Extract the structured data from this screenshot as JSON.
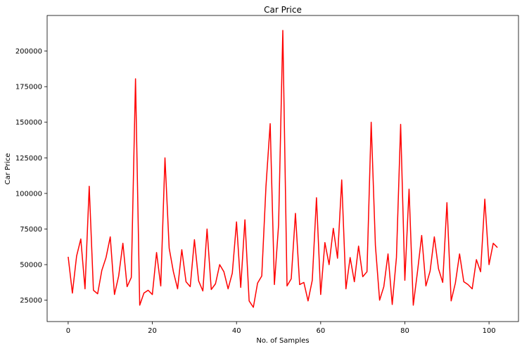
{
  "chart_data": {
    "type": "line",
    "title": "Car Price",
    "xlabel": "No. of Samples",
    "ylabel": "Car Price",
    "xlim": [
      -5,
      107
    ],
    "ylim": [
      10000,
      225000
    ],
    "x_ticks": [
      0,
      20,
      40,
      60,
      80,
      100
    ],
    "y_ticks": [
      25000,
      50000,
      75000,
      100000,
      125000,
      150000,
      175000,
      200000
    ],
    "grid": false,
    "line_color": "#ff0000",
    "series": [
      {
        "x": [
          0,
          1,
          2,
          3,
          4,
          5,
          6,
          7,
          8,
          9,
          10,
          11,
          12,
          13,
          14,
          15,
          16,
          17,
          18,
          19,
          20,
          21,
          22,
          23,
          24,
          25,
          26,
          27,
          28,
          29,
          30,
          31,
          32,
          33,
          34,
          35,
          36,
          37,
          38,
          39,
          40,
          41,
          42,
          43,
          44,
          45,
          46,
          47,
          48,
          49,
          50,
          51,
          52,
          53,
          54,
          55,
          56,
          57,
          58,
          59,
          60,
          61,
          62,
          63,
          64,
          65,
          66,
          67,
          68,
          69,
          70,
          71,
          72,
          73,
          74,
          75,
          76,
          77,
          78,
          79,
          80,
          81,
          82,
          83,
          84,
          85,
          86,
          87,
          88,
          89,
          90,
          91,
          92,
          93,
          94,
          95,
          96,
          97,
          98,
          99,
          100,
          101,
          102
        ],
        "values": [
          55500,
          30000,
          56000,
          68000,
          33000,
          105000,
          32000,
          29500,
          46000,
          55000,
          69500,
          29000,
          42000,
          65000,
          34500,
          41000,
          180500,
          21500,
          30000,
          32000,
          29000,
          58500,
          35000,
          125000,
          61500,
          45000,
          33000,
          60500,
          38000,
          34500,
          67500,
          38500,
          31500,
          75000,
          32500,
          36500,
          50000,
          45000,
          33000,
          44000,
          80000,
          34000,
          81500,
          24500,
          20000,
          37000,
          42000,
          105000,
          149000,
          36000,
          78000,
          214500,
          35000,
          40000,
          86000,
          36000,
          37500,
          24500,
          39000,
          97000,
          29000,
          65500,
          50000,
          75500,
          54500,
          109500,
          33000,
          55000,
          38000,
          63000,
          41500,
          45000,
          150000,
          63500,
          25000,
          34500,
          57500,
          22000,
          55000,
          148500,
          39000,
          103000,
          21500,
          45000,
          70500,
          35000,
          45500,
          69500,
          47000,
          37500,
          93500,
          24500,
          37000,
          57500,
          38000,
          36000,
          33000,
          53500,
          45000,
          96000,
          50000,
          65000,
          62000
        ]
      }
    ]
  }
}
